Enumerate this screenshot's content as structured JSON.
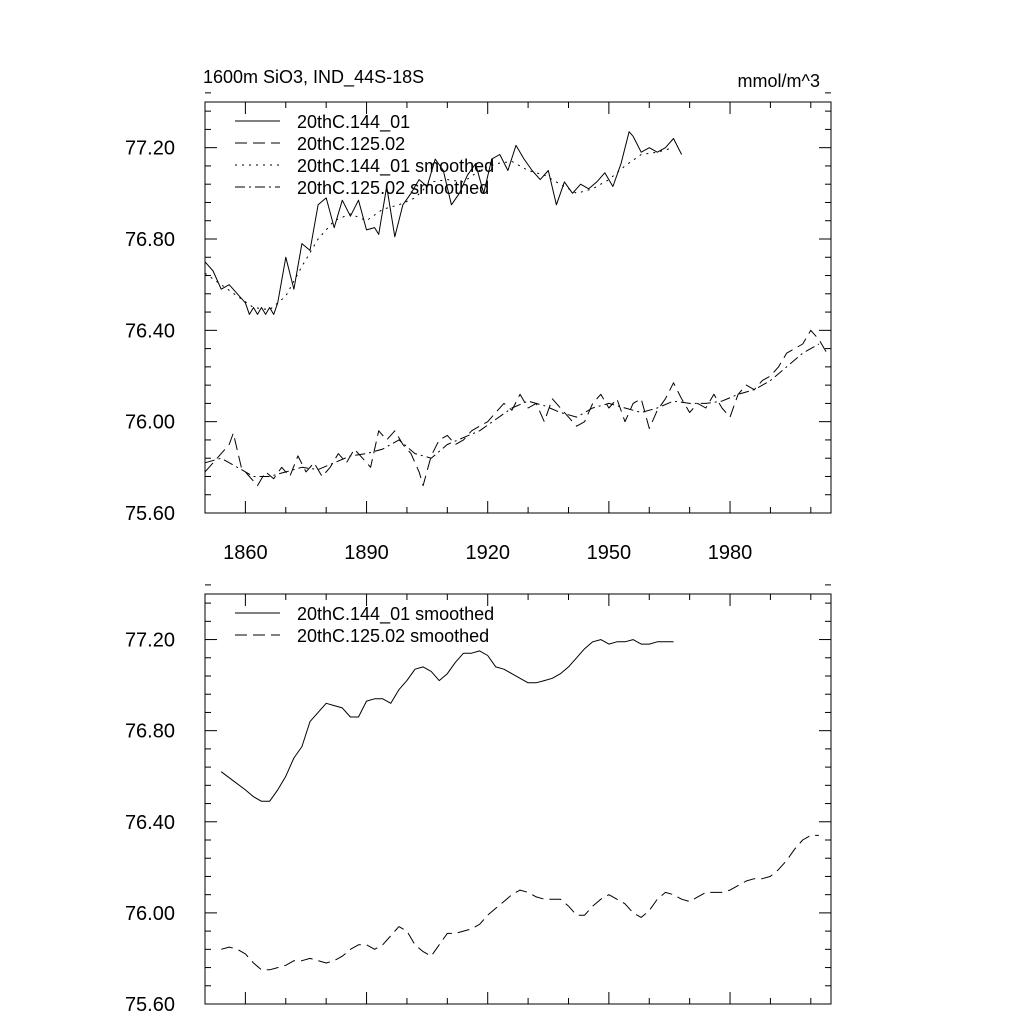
{
  "figure": {
    "title_left": "1600m SiO3, IND_44S-18S",
    "title_right": "mmol/m^3",
    "colors": {
      "line": "#000000",
      "background": "#ffffff"
    }
  },
  "chart_data": [
    {
      "type": "line",
      "panel": "top",
      "title": "1600m SiO3, IND_44S-18S",
      "units": "mmol/m^3",
      "xlim": [
        1850,
        2005
      ],
      "ylim": [
        75.6,
        77.4
      ],
      "xticks": [
        1860,
        1890,
        1920,
        1950,
        1980
      ],
      "xtick_labels": [
        "1860",
        "1890",
        "1920",
        "1950",
        "1980"
      ],
      "yticks": [
        75.6,
        76.0,
        76.4,
        76.8,
        77.2
      ],
      "ytick_labels": [
        "75.60",
        "76.00",
        "76.40",
        "76.80",
        "77.20"
      ],
      "legend": [
        "20thC.144_01",
        "20thC.125.02",
        "20thC.144_01 smoothed",
        "20thC.125.02 smoothed"
      ],
      "legend_position": "top-left",
      "series": [
        {
          "name": "20thC.144_01",
          "style": "solid",
          "x": [
            1850,
            1852,
            1854,
            1856,
            1858,
            1860,
            1861,
            1862,
            1863,
            1864,
            1865,
            1866,
            1867,
            1868,
            1870,
            1872,
            1874,
            1876,
            1878,
            1880,
            1882,
            1884,
            1886,
            1888,
            1890,
            1892,
            1893,
            1895,
            1897,
            1899,
            1901,
            1903,
            1905,
            1907,
            1909,
            1911,
            1913,
            1915,
            1917,
            1919,
            1921,
            1923,
            1925,
            1927,
            1929,
            1931,
            1933,
            1935,
            1937,
            1939,
            1941,
            1943,
            1945,
            1947,
            1949,
            1951,
            1953,
            1955,
            1956,
            1958,
            1960,
            1962,
            1964,
            1966,
            1968
          ],
          "y": [
            76.7,
            76.66,
            76.58,
            76.6,
            76.56,
            76.52,
            76.47,
            76.5,
            76.47,
            76.5,
            76.47,
            76.5,
            76.47,
            76.52,
            76.72,
            76.58,
            76.78,
            76.75,
            76.95,
            76.98,
            76.85,
            76.97,
            76.9,
            76.97,
            76.84,
            76.85,
            76.82,
            77.03,
            76.81,
            76.95,
            77.0,
            77.06,
            77.03,
            77.15,
            77.1,
            76.95,
            77.0,
            77.08,
            77.13,
            77.0,
            77.15,
            77.17,
            77.1,
            77.21,
            77.15,
            77.1,
            77.06,
            77.1,
            76.95,
            77.05,
            77.0,
            77.04,
            77.02,
            77.05,
            77.09,
            77.03,
            77.13,
            77.27,
            77.25,
            77.18,
            77.2,
            77.18,
            77.2,
            77.24,
            77.17
          ]
        },
        {
          "name": "20thC.125.02",
          "style": "dashed",
          "x": [
            1850,
            1852,
            1854,
            1856,
            1857,
            1859,
            1861,
            1863,
            1865,
            1867,
            1869,
            1871,
            1873,
            1875,
            1877,
            1879,
            1881,
            1883,
            1885,
            1887,
            1889,
            1891,
            1893,
            1895,
            1897,
            1899,
            1901,
            1903,
            1904,
            1906,
            1908,
            1910,
            1912,
            1914,
            1916,
            1918,
            1920,
            1922,
            1924,
            1926,
            1928,
            1930,
            1932,
            1934,
            1936,
            1938,
            1940,
            1942,
            1944,
            1946,
            1948,
            1950,
            1952,
            1954,
            1956,
            1958,
            1960,
            1962,
            1964,
            1966,
            1968,
            1970,
            1972,
            1974,
            1976,
            1978,
            1980,
            1982,
            1984,
            1986,
            1988,
            1990,
            1992,
            1994,
            1996,
            1998,
            2000,
            2002,
            2004
          ],
          "y": [
            75.78,
            75.82,
            75.86,
            75.9,
            75.95,
            75.8,
            75.76,
            75.72,
            75.78,
            75.75,
            75.8,
            75.76,
            75.85,
            75.78,
            75.82,
            75.76,
            75.8,
            75.86,
            75.82,
            75.88,
            75.84,
            75.8,
            75.96,
            75.92,
            75.96,
            75.9,
            75.86,
            75.78,
            75.72,
            75.85,
            75.92,
            75.94,
            75.9,
            75.92,
            75.96,
            75.98,
            76.0,
            76.04,
            76.08,
            76.05,
            76.12,
            76.06,
            76.08,
            76.0,
            76.1,
            76.06,
            76.02,
            75.98,
            76.0,
            76.08,
            76.12,
            76.06,
            76.1,
            76.0,
            76.08,
            76.1,
            75.97,
            76.05,
            76.1,
            76.17,
            76.1,
            76.04,
            76.08,
            76.06,
            76.12,
            76.06,
            76.02,
            76.12,
            76.16,
            76.14,
            76.18,
            76.2,
            76.24,
            76.3,
            76.32,
            76.34,
            76.4,
            76.36,
            76.3
          ]
        },
        {
          "name": "20thC.144_01 smoothed",
          "style": "dotted",
          "x": [
            1850,
            1854,
            1858,
            1862,
            1866,
            1870,
            1874,
            1878,
            1882,
            1886,
            1890,
            1894,
            1898,
            1902,
            1906,
            1910,
            1914,
            1918,
            1922,
            1926,
            1930,
            1934,
            1938,
            1942,
            1946,
            1950,
            1954,
            1958,
            1962,
            1966
          ],
          "y": [
            76.65,
            76.6,
            76.55,
            76.5,
            76.49,
            76.55,
            76.68,
            76.8,
            76.88,
            76.91,
            76.88,
            76.93,
            76.95,
            76.98,
            77.05,
            77.06,
            77.05,
            77.1,
            77.13,
            77.14,
            77.1,
            77.08,
            77.04,
            77.0,
            77.02,
            77.06,
            77.12,
            77.17,
            77.18,
            77.2
          ]
        },
        {
          "name": "20thC.125.02 smoothed",
          "style": "dashdot",
          "x": [
            1850,
            1854,
            1858,
            1862,
            1866,
            1870,
            1874,
            1878,
            1882,
            1886,
            1890,
            1894,
            1898,
            1902,
            1906,
            1910,
            1914,
            1918,
            1922,
            1926,
            1930,
            1934,
            1938,
            1942,
            1946,
            1950,
            1954,
            1958,
            1962,
            1966,
            1970,
            1974,
            1978,
            1982,
            1986,
            1990,
            1994,
            1998,
            2002
          ],
          "y": [
            75.82,
            75.84,
            75.8,
            75.76,
            75.76,
            75.78,
            75.8,
            75.79,
            75.82,
            75.85,
            75.86,
            75.88,
            75.92,
            75.86,
            75.84,
            75.9,
            75.93,
            75.96,
            76.01,
            76.06,
            76.09,
            76.07,
            76.04,
            76.02,
            76.06,
            76.08,
            76.06,
            76.04,
            76.06,
            76.09,
            76.08,
            76.08,
            76.09,
            76.12,
            76.14,
            76.18,
            76.24,
            76.3,
            76.34
          ]
        }
      ]
    },
    {
      "type": "line",
      "panel": "bottom",
      "xlim": [
        1850,
        2005
      ],
      "ylim": [
        75.6,
        77.4
      ],
      "xticks": [
        1860,
        1890,
        1920,
        1950,
        1980
      ],
      "yticks": [
        75.6,
        76.0,
        76.4,
        76.8,
        77.2
      ],
      "ytick_labels": [
        "75.60",
        "76.00",
        "76.40",
        "76.80",
        "77.20"
      ],
      "legend": [
        "20thC.144_01 smoothed",
        "20thC.125.02 smoothed"
      ],
      "legend_position": "top-left",
      "series": [
        {
          "name": "20thC.144_01 smoothed",
          "style": "solid",
          "x": [
            1854,
            1857,
            1860,
            1862,
            1864,
            1866,
            1868,
            1870,
            1872,
            1874,
            1876,
            1878,
            1880,
            1882,
            1884,
            1886,
            1888,
            1890,
            1892,
            1894,
            1896,
            1898,
            1900,
            1902,
            1904,
            1906,
            1908,
            1910,
            1912,
            1914,
            1916,
            1918,
            1920,
            1922,
            1924,
            1926,
            1928,
            1930,
            1932,
            1934,
            1936,
            1938,
            1940,
            1942,
            1944,
            1946,
            1948,
            1950,
            1952,
            1954,
            1956,
            1958,
            1960,
            1962,
            1964,
            1966
          ],
          "y": [
            76.62,
            76.58,
            76.54,
            76.51,
            76.49,
            76.49,
            76.54,
            76.6,
            76.68,
            76.73,
            76.84,
            76.88,
            76.92,
            76.91,
            76.9,
            76.86,
            76.86,
            76.93,
            76.94,
            76.94,
            76.92,
            76.98,
            77.02,
            77.07,
            77.08,
            77.06,
            77.02,
            77.05,
            77.1,
            77.14,
            77.14,
            77.15,
            77.13,
            77.08,
            77.07,
            77.05,
            77.03,
            77.01,
            77.01,
            77.02,
            77.03,
            77.05,
            77.08,
            77.12,
            77.16,
            77.19,
            77.2,
            77.18,
            77.19,
            77.19,
            77.2,
            77.18,
            77.18,
            77.19,
            77.19,
            77.19
          ]
        },
        {
          "name": "20thC.125.02 smoothed",
          "style": "dashed",
          "x": [
            1854,
            1856,
            1858,
            1860,
            1862,
            1864,
            1866,
            1868,
            1870,
            1872,
            1874,
            1876,
            1878,
            1880,
            1882,
            1884,
            1886,
            1888,
            1890,
            1892,
            1894,
            1896,
            1898,
            1900,
            1902,
            1904,
            1906,
            1908,
            1910,
            1912,
            1914,
            1916,
            1918,
            1920,
            1922,
            1924,
            1926,
            1928,
            1930,
            1932,
            1934,
            1936,
            1938,
            1940,
            1942,
            1944,
            1946,
            1948,
            1950,
            1952,
            1954,
            1956,
            1958,
            1960,
            1962,
            1964,
            1966,
            1968,
            1970,
            1972,
            1974,
            1976,
            1978,
            1980,
            1982,
            1984,
            1986,
            1988,
            1990,
            1992,
            1994,
            1996,
            1998,
            2000,
            2002
          ],
          "y": [
            75.84,
            75.85,
            75.84,
            75.82,
            75.78,
            75.75,
            75.75,
            75.76,
            75.77,
            75.79,
            75.79,
            75.8,
            75.79,
            75.78,
            75.79,
            75.81,
            75.84,
            75.86,
            75.86,
            75.84,
            75.86,
            75.9,
            75.94,
            75.92,
            75.86,
            75.83,
            75.81,
            75.86,
            75.91,
            75.91,
            75.92,
            75.93,
            75.95,
            75.99,
            76.02,
            76.05,
            76.08,
            76.1,
            76.09,
            76.07,
            76.06,
            76.06,
            76.06,
            76.03,
            75.99,
            75.99,
            76.03,
            76.06,
            76.08,
            76.06,
            76.04,
            76.0,
            75.98,
            76.01,
            76.06,
            76.09,
            76.08,
            76.06,
            76.05,
            76.07,
            76.09,
            76.09,
            76.09,
            76.1,
            76.12,
            76.14,
            76.15,
            76.15,
            76.16,
            76.19,
            76.23,
            76.28,
            76.32,
            76.34,
            76.34
          ]
        }
      ]
    }
  ]
}
